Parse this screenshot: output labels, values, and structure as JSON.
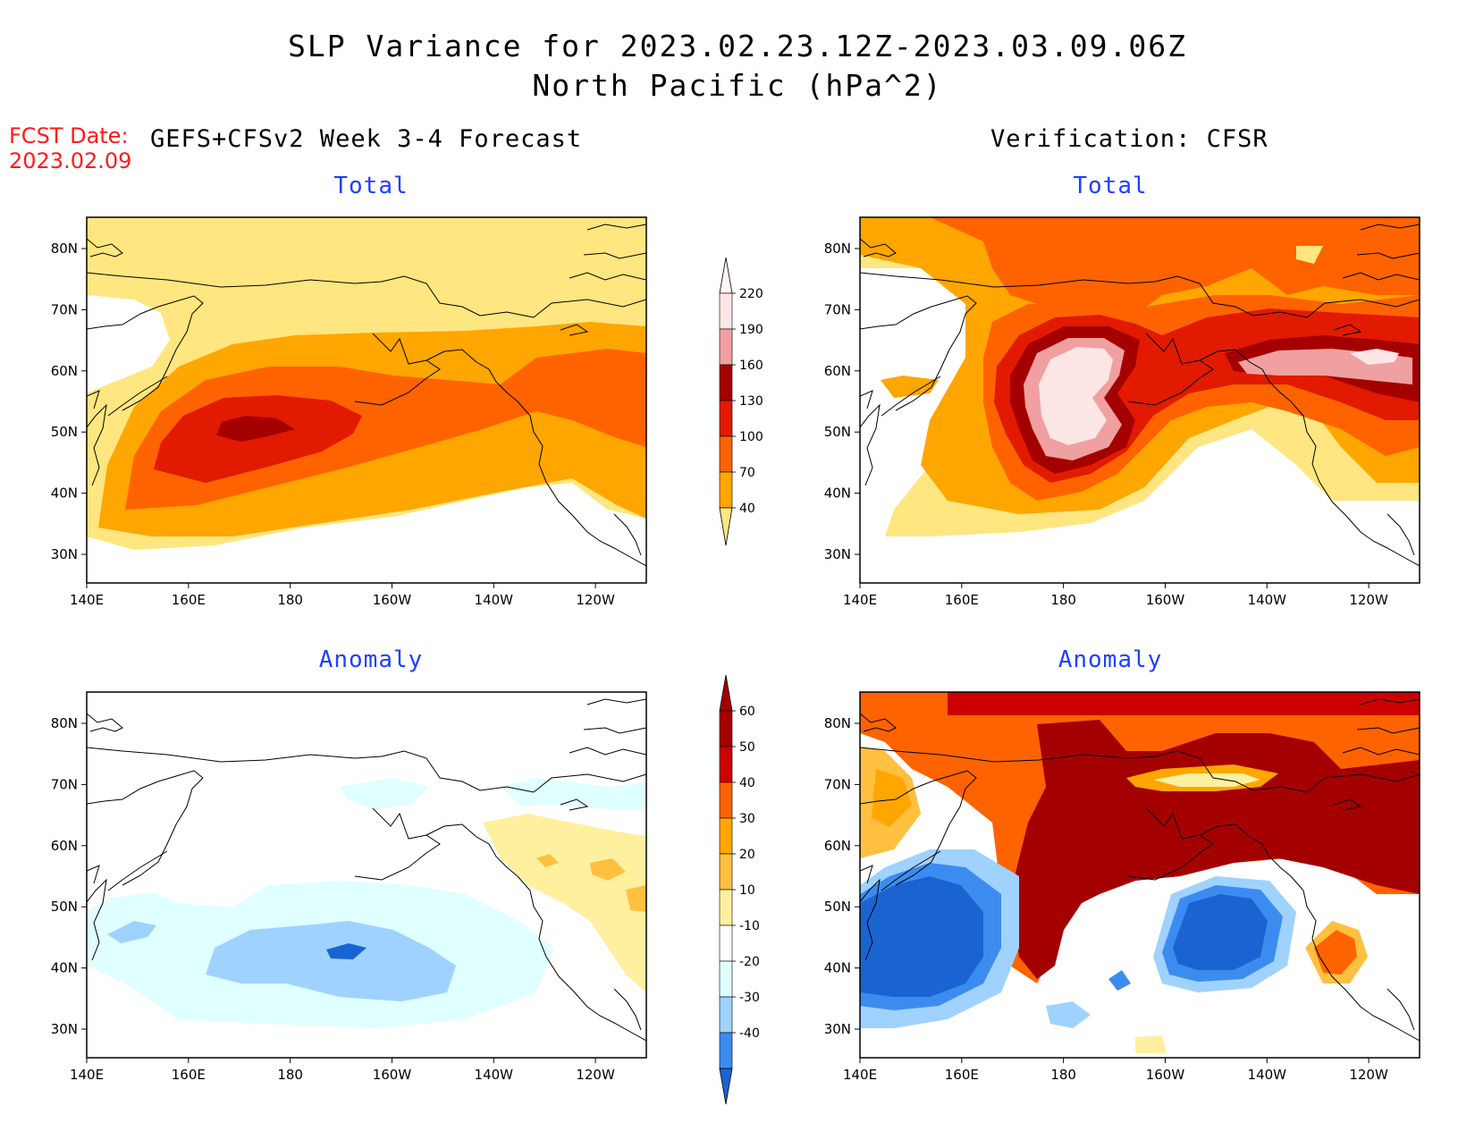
{
  "title": {
    "line1": "SLP Variance for 2023.02.23.12Z-2023.03.09.06Z",
    "line2": "North Pacific (hPa^2)"
  },
  "forecast_date": {
    "label": "FCST Date:",
    "value": "2023.02.09"
  },
  "columns": {
    "left": "GEFS+CFSv2 Week 3-4 Forecast",
    "right": "Verification: CFSR"
  },
  "panels": {
    "top_left": "Total",
    "top_right": "Total",
    "bottom_left": "Anomaly",
    "bottom_right": "Anomaly"
  },
  "axes": {
    "lon_ticks": [
      "140E",
      "160E",
      "180",
      "160W",
      "140W",
      "120W"
    ],
    "lat_ticks": [
      "80N",
      "70N",
      "60N",
      "50N",
      "40N",
      "30N"
    ]
  },
  "colorbar_total": {
    "levels": [
      "220",
      "190",
      "160",
      "130",
      "100",
      "70",
      "40"
    ],
    "colors": {
      "c40": "#ffe680",
      "c70": "#ffa600",
      "c100": "#ff6300",
      "c130": "#e11a00",
      "c160": "#a50000",
      "c190": "#f0a0a0",
      "c220": "#fde6e6"
    }
  },
  "colorbar_anomaly": {
    "levels": [
      "60",
      "50",
      "40",
      "30",
      "20",
      "10",
      "-10",
      "-20",
      "-30",
      "-40"
    ],
    "colors": {
      "pos60": "#a50000",
      "pos50": "#cd0000",
      "pos40": "#ff6300",
      "pos30": "#ffa600",
      "pos20": "#ffc040",
      "pos10": "#fff0a0",
      "neutral": "#ffffff",
      "neg10": "#e0ffff",
      "neg20": "#a0d2ff",
      "neg30": "#3c8cf0",
      "neg40": "#1a64d2"
    }
  }
}
